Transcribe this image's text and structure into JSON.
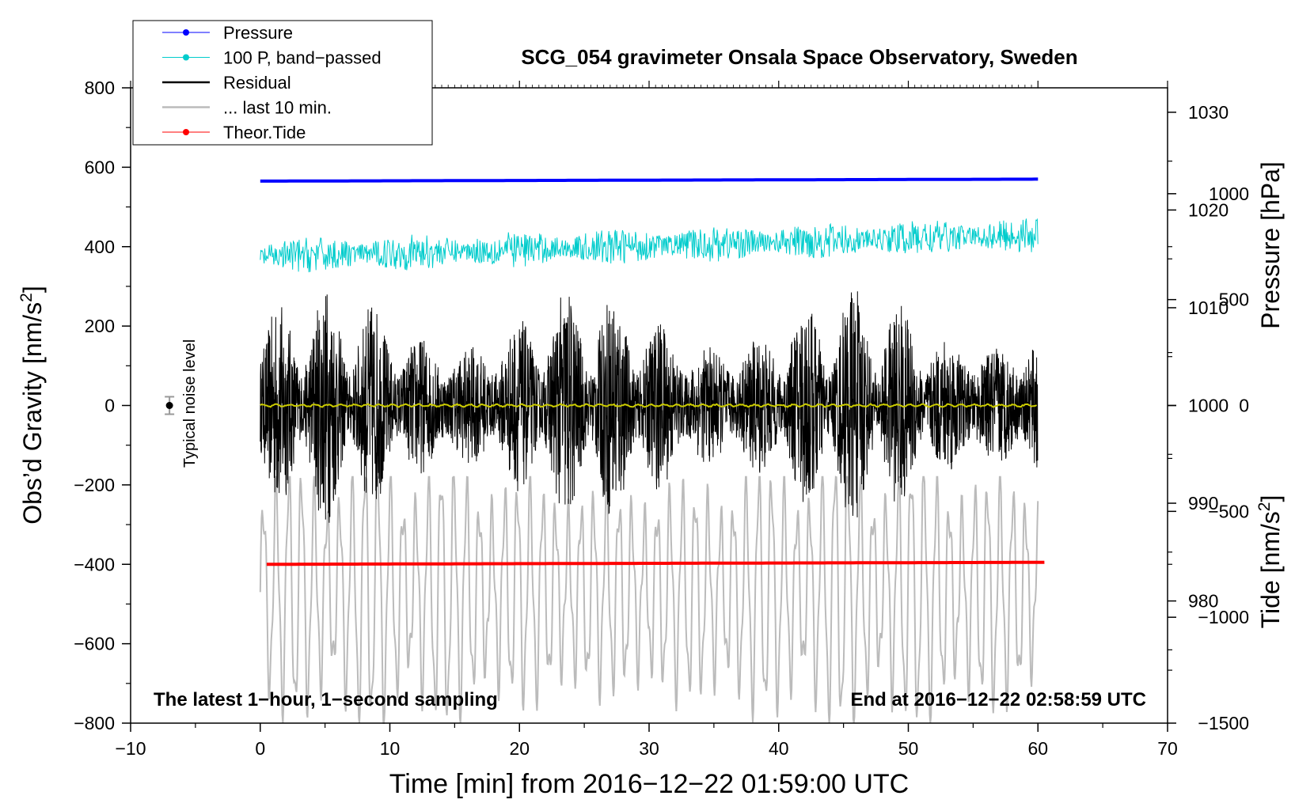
{
  "chart_data": {
    "type": "line",
    "title": "SCG_054 gravimeter Onsala Space Observatory, Sweden",
    "xlabel": "Time [min] from 2016−12−22 01:59:00 UTC",
    "ylabel_left_pre": "Obs’d Gravity [nm/s",
    "ylabel_left_sup": "2",
    "ylabel_left_post": "]",
    "ylabel_pressure": "Pressure [hPa]",
    "ylabel_tide_pre": "Tide [nm/s",
    "ylabel_tide_sup": "2",
    "ylabel_tide_post": "]",
    "xlim": [
      -10,
      70
    ],
    "ylim": [
      -800,
      800
    ],
    "pressure_ylim": [
      967.5,
      1032.5
    ],
    "tide_ylim": [
      -1500,
      1500
    ],
    "x_ticks": [
      -10,
      0,
      10,
      20,
      30,
      40,
      50,
      60,
      70
    ],
    "x_tick_labels": [
      "−10",
      "0",
      "10",
      "20",
      "30",
      "40",
      "50",
      "60",
      "70"
    ],
    "y_ticks": [
      -800,
      -600,
      -400,
      -200,
      0,
      200,
      400,
      600,
      800
    ],
    "y_tick_labels": [
      "−800",
      "−600",
      "−400",
      "−200",
      "0",
      "200",
      "400",
      "600",
      "800"
    ],
    "pressure_ticks": [
      980,
      990,
      1000,
      1010,
      1020,
      1030
    ],
    "pressure_tick_labels": [
      "980",
      "990",
      "1000",
      "1010",
      "1020",
      "1030"
    ],
    "tide_ticks": [
      -1500,
      -1000,
      -500,
      0,
      500,
      1000
    ],
    "tide_tick_labels": [
      "−1500",
      "−1000",
      "−500",
      "0",
      "500",
      "1000"
    ],
    "annotation_left": "The latest 1−hour, 1−second sampling",
    "annotation_right": "End at 2016−12−22 02:58:59 UTC",
    "noise_label": "Typical noise level",
    "noise_marker": {
      "x": -7,
      "y": 0,
      "err": 22
    },
    "legend": [
      {
        "label": "Pressure",
        "color": "#0000ff",
        "marker": true
      },
      {
        "label": "100 P, band−passed",
        "color": "#00cccc",
        "marker": true
      },
      {
        "label": "Residual",
        "color": "#000000",
        "marker": false
      },
      {
        "label": "... last 10 min.",
        "color": "#bbbbbb",
        "marker": false
      },
      {
        "label": "Theor.Tide",
        "color": "#ff0000",
        "marker": true
      }
    ],
    "series": [
      {
        "name": "Pressure",
        "color": "#0000ff",
        "x_range": [
          0,
          60
        ],
        "start_value": 565,
        "end_value": 570
      },
      {
        "name": "100 P, band−passed",
        "color": "#00cccc",
        "x_range": [
          0,
          60
        ],
        "start_value": 375,
        "end_value": 430,
        "amplitude": 45
      },
      {
        "name": "Residual",
        "color": "#000000",
        "x_range": [
          0,
          60
        ],
        "center": 0,
        "peak_max": 300,
        "peak_min": -330
      },
      {
        "name": "... last 10 min.",
        "color": "#bbbbbb",
        "x_range": [
          0,
          60
        ],
        "center": -470,
        "peak_max": -180,
        "peak_min": -800
      },
      {
        "name": "Theor.Tide",
        "color": "#ff0000",
        "x_range": [
          0.5,
          60.5
        ],
        "start_value": -400,
        "end_value": -395
      },
      {
        "name": "smoothed residual",
        "color": "#cccc00",
        "x_range": [
          0,
          60
        ],
        "center": 0
      }
    ]
  }
}
